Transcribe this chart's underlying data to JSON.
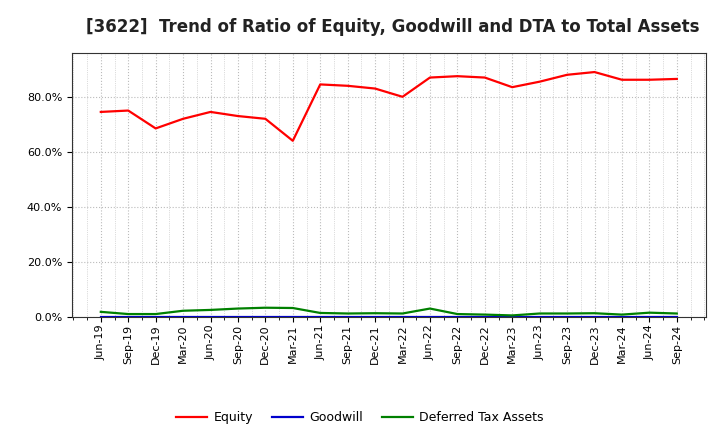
{
  "title": "[3622]  Trend of Ratio of Equity, Goodwill and DTA to Total Assets",
  "x_labels": [
    "Jun-19",
    "Sep-19",
    "Dec-19",
    "Mar-20",
    "Jun-20",
    "Sep-20",
    "Dec-20",
    "Mar-21",
    "Jun-21",
    "Sep-21",
    "Dec-21",
    "Mar-22",
    "Jun-22",
    "Sep-22",
    "Dec-22",
    "Mar-23",
    "Jun-23",
    "Sep-23",
    "Dec-23",
    "Mar-24",
    "Jun-24",
    "Sep-24"
  ],
  "equity": [
    0.745,
    0.75,
    0.685,
    0.72,
    0.745,
    0.73,
    0.72,
    0.64,
    0.845,
    0.84,
    0.83,
    0.8,
    0.87,
    0.875,
    0.87,
    0.835,
    0.855,
    0.88,
    0.89,
    0.862,
    0.862,
    0.865
  ],
  "goodwill": [
    0.0,
    0.0,
    0.0,
    0.0,
    0.0,
    0.0,
    0.0,
    0.0,
    0.0,
    0.0,
    0.0,
    0.0,
    0.0,
    0.0,
    0.0,
    0.0,
    0.0,
    0.0,
    0.0,
    0.0,
    0.0,
    0.0
  ],
  "dta": [
    0.018,
    0.01,
    0.01,
    0.022,
    0.025,
    0.03,
    0.033,
    0.032,
    0.014,
    0.012,
    0.013,
    0.012,
    0.03,
    0.01,
    0.008,
    0.005,
    0.012,
    0.012,
    0.013,
    0.008,
    0.015,
    0.012
  ],
  "equity_color": "#ff0000",
  "goodwill_color": "#0000cc",
  "dta_color": "#008000",
  "bg_color": "#ffffff",
  "plot_bg_color": "#ffffff",
  "grid_color": "#bbbbbb",
  "ylim": [
    0.0,
    0.96
  ],
  "yticks": [
    0.0,
    0.2,
    0.4,
    0.6,
    0.8
  ],
  "legend_labels": [
    "Equity",
    "Goodwill",
    "Deferred Tax Assets"
  ],
  "title_fontsize": 12,
  "tick_fontsize": 8,
  "linewidth": 1.6
}
